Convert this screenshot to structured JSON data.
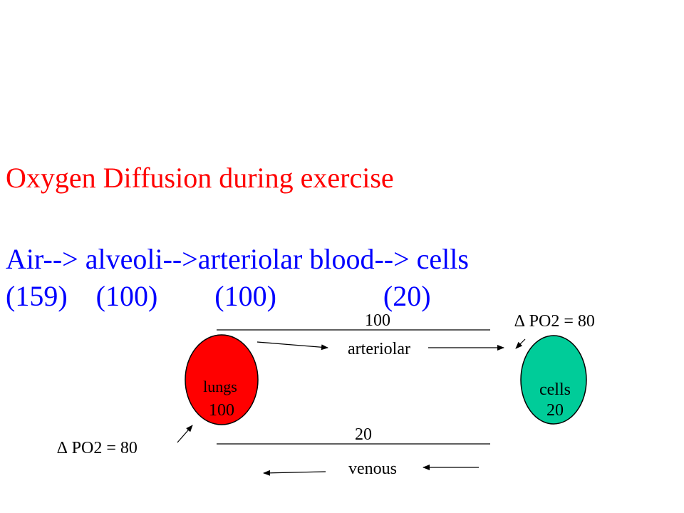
{
  "title": "Oxygen Diffusion during exercise",
  "flow": {
    "text": "Air--> alveoli-->arteriolar blood--> cells"
  },
  "pressures": {
    "air": "(159)",
    "alveoli": "(100)",
    "arteriolar_blood": "(100)",
    "cells": "(20)"
  },
  "diagram": {
    "lungs": {
      "label": "lungs",
      "value": "100",
      "color": "#ff0000"
    },
    "cells": {
      "label": "cells",
      "value": "20",
      "color": "#00cc99"
    },
    "arteriolar": {
      "label": "arteriolar",
      "value": "100"
    },
    "venous": {
      "label": "venous",
      "value": "20"
    },
    "delta_top": "∆ PO2 = 80",
    "delta_bottom": "∆ PO2 = 80"
  },
  "colors": {
    "title": "#ff0000",
    "flow": "#0000ff",
    "ink": "#000000"
  }
}
